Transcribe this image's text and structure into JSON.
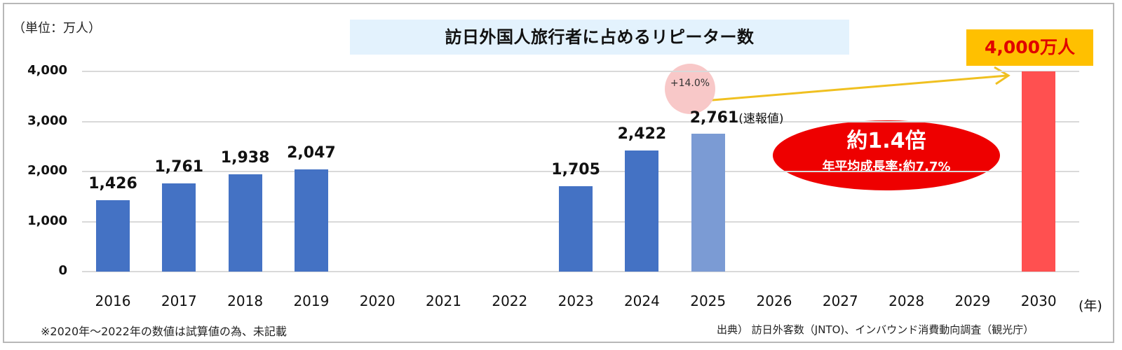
{
  "title": "訪日外国人旅行者に占めるリピーター数",
  "unit_label": "（単位：万人）",
  "x_unit_label": "(年)",
  "footnote": "※2020年～2022年の数値は試算値の為、未記載",
  "source": "出典）  訪日外客数（JNTO)、インバウンド消費動向調査（観光庁）",
  "preliminary_label": "(速報値)",
  "annotations": {
    "growth_pct": "+14.0%",
    "multiplier": "約1.4倍",
    "cagr": "年平均成長率:約7.7%",
    "target": "4,000万人"
  },
  "colors": {
    "bar_actual": "#4472c4",
    "bar_preliminary": "#7b9bd4",
    "bar_target": "#ff5050",
    "title_bg": "#e3f2fd",
    "ellipse": "#ee0000",
    "target_box": "#ffc000",
    "target_text": "#e00000",
    "arrow": "#f0c020",
    "pct_bubble": "#f8c8c8",
    "grid": "#d9d9d9"
  },
  "y_ticks": [
    "4,000",
    "3,000",
    "2,000",
    "1,000",
    "0"
  ],
  "chart_data": {
    "type": "bar",
    "title": "訪日外国人旅行者に占めるリピーター数",
    "xlabel": "(年)",
    "ylabel": "（単位：万人）",
    "ylim": [
      0,
      4000
    ],
    "y_ticks": [
      0,
      1000,
      2000,
      3000,
      4000
    ],
    "grid": true,
    "categories": [
      "2016",
      "2017",
      "2018",
      "2019",
      "2020",
      "2021",
      "2022",
      "2023",
      "2024",
      "2025",
      "2026",
      "2027",
      "2028",
      "2029",
      "2030"
    ],
    "values": [
      1426,
      1761,
      1938,
      2047,
      null,
      null,
      null,
      1705,
      2422,
      2761,
      null,
      null,
      null,
      null,
      4000
    ],
    "value_labels": [
      "1,426",
      "1,761",
      "1,938",
      "2,047",
      "",
      "",
      "",
      "1,705",
      "2,422",
      "2,761",
      "",
      "",
      "",
      "",
      ""
    ],
    "bar_kinds": [
      "actual",
      "actual",
      "actual",
      "actual",
      "none",
      "none",
      "none",
      "actual",
      "actual",
      "preliminary",
      "none",
      "none",
      "none",
      "none",
      "target"
    ],
    "annotations": [
      {
        "text": "+14.0%",
        "near": "2025"
      },
      {
        "text": "(速報値)",
        "near": "2025"
      },
      {
        "text": "約1.4倍",
        "type": "ellipse"
      },
      {
        "text": "年平均成長率:約7.7%",
        "type": "ellipse"
      },
      {
        "text": "4,000万人",
        "near": "2030"
      }
    ]
  }
}
